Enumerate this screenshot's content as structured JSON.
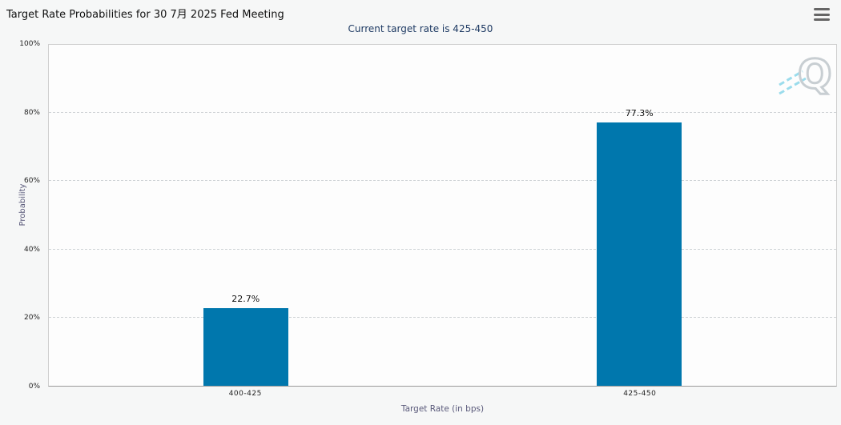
{
  "header": {
    "title": "Target Rate Probabilities for 30 7月 2025 Fed Meeting",
    "subtitle": "Current target rate is 425-450"
  },
  "icons": {
    "menu": "hamburger-icon",
    "watermark": "quikstrike-q-logo"
  },
  "chart_data": {
    "type": "bar",
    "title": "Target Rate Probabilities for 30 7月 2025 Fed Meeting",
    "subtitle": "Current target rate is 425-450",
    "categories": [
      "400-425",
      "425-450"
    ],
    "values": [
      22.7,
      77.3
    ],
    "bar_labels": [
      "22.7%",
      "77.3%"
    ],
    "xlabel": "Target Rate (in bps)",
    "ylabel": "Probability",
    "ylim": [
      0,
      100
    ],
    "yticks": [
      0,
      20,
      40,
      60,
      80,
      100
    ],
    "ytick_labels": [
      "0%",
      "20%",
      "40%",
      "60%",
      "80%",
      "100%"
    ],
    "grid": true,
    "legend": "none",
    "bar_color": "#0077ad",
    "label_color": "#111111",
    "subtitle_color": "#1e3a63",
    "axis_title_color": "#59597a"
  }
}
